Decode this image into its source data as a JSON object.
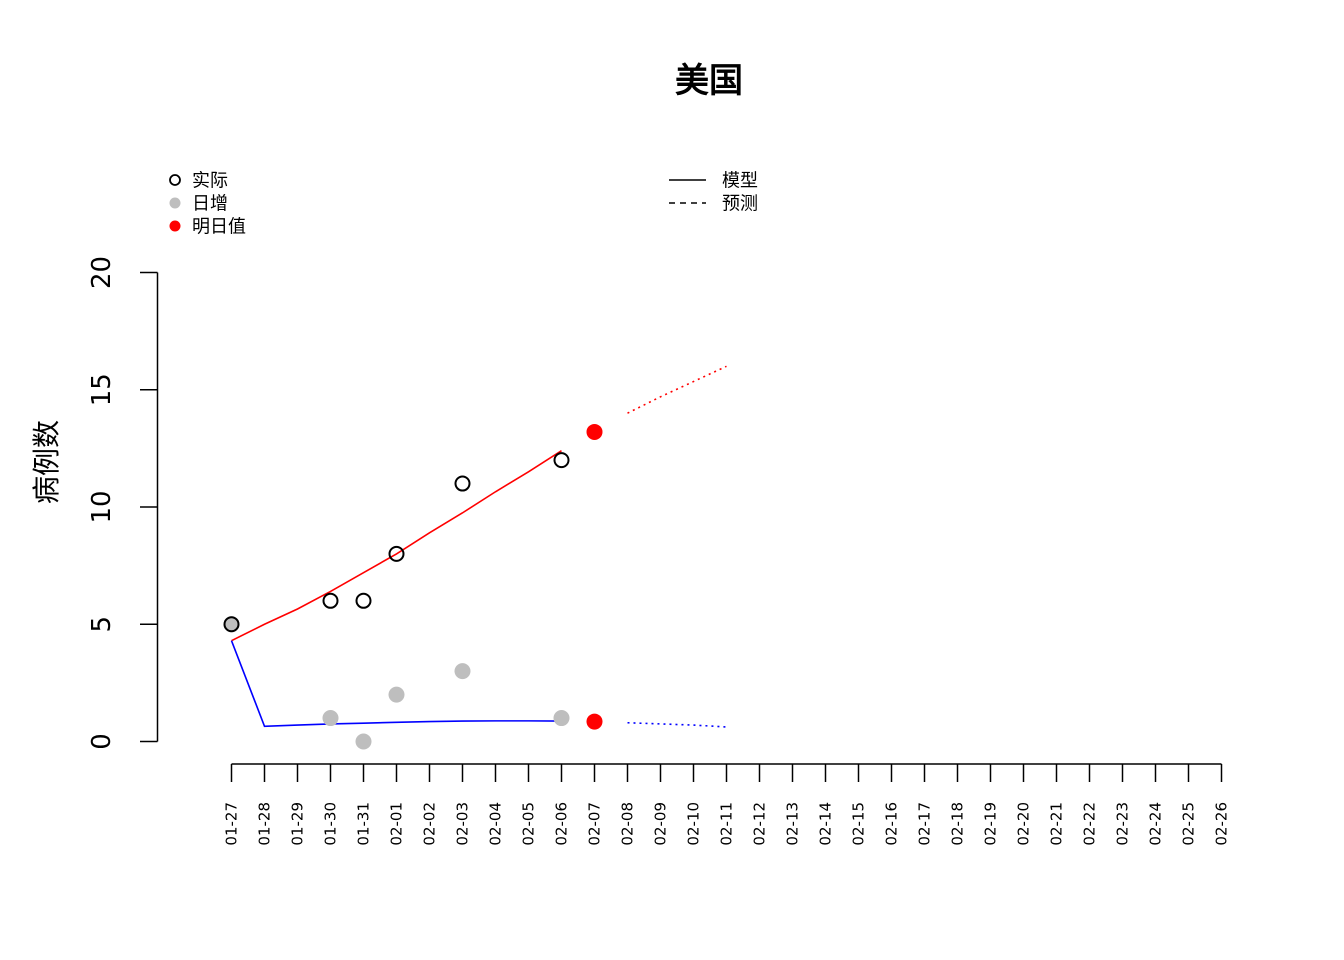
{
  "chart_data": {
    "type": "scatter",
    "title": "美国",
    "xlabel": "",
    "ylabel": "病例数",
    "ylim": [
      0,
      20
    ],
    "yticks": [
      0,
      5,
      10,
      15,
      20
    ],
    "x_categories": [
      "01-27",
      "01-28",
      "01-29",
      "01-30",
      "01-31",
      "02-01",
      "02-02",
      "02-03",
      "02-04",
      "02-05",
      "02-06",
      "02-07",
      "02-08",
      "02-09",
      "02-10",
      "02-11",
      "02-12",
      "02-13",
      "02-14",
      "02-15",
      "02-16",
      "02-17",
      "02-18",
      "02-19",
      "02-20",
      "02-21",
      "02-22",
      "02-23",
      "02-24",
      "02-25",
      "02-26"
    ],
    "legend": {
      "points": [
        {
          "label": "实际",
          "style": "open-circle",
          "color": "#000000"
        },
        {
          "label": "日增",
          "style": "filled-circle",
          "color": "#bebebe"
        },
        {
          "label": "明日值",
          "style": "filled-circle",
          "color": "#ff0000"
        }
      ],
      "lines": [
        {
          "label": "模型",
          "style": "solid"
        },
        {
          "label": "预测",
          "style": "dashed"
        }
      ]
    },
    "series": [
      {
        "kind": "actual",
        "color": "#000000",
        "points": [
          [
            "01-27",
            5
          ],
          [
            "01-30",
            6
          ],
          [
            "01-31",
            6
          ],
          [
            "02-01",
            8
          ],
          [
            "02-03",
            11
          ],
          [
            "02-06",
            12
          ]
        ]
      },
      {
        "kind": "daily",
        "color": "#bebebe",
        "points": [
          [
            "01-27",
            5
          ],
          [
            "01-30",
            1
          ],
          [
            "01-31",
            0
          ],
          [
            "02-01",
            2
          ],
          [
            "02-03",
            3
          ],
          [
            "02-06",
            1
          ]
        ]
      },
      {
        "kind": "tomorrow",
        "color": "#ff0000",
        "points": [
          [
            "02-07",
            13.2
          ],
          [
            "02-07",
            0.85
          ]
        ]
      },
      {
        "kind": "model-cumulative",
        "color": "#ff0000",
        "points": [
          [
            "01-27",
            4.3
          ],
          [
            "01-28",
            5.0
          ],
          [
            "01-29",
            5.65
          ],
          [
            "01-30",
            6.4
          ],
          [
            "01-31",
            7.2
          ],
          [
            "02-01",
            8.0
          ],
          [
            "02-02",
            8.9
          ],
          [
            "02-03",
            9.75
          ],
          [
            "02-04",
            10.65
          ],
          [
            "02-05",
            11.5
          ],
          [
            "02-06",
            12.4
          ]
        ]
      },
      {
        "kind": "model-daily",
        "color": "#0000ff",
        "points": [
          [
            "01-27",
            4.3
          ],
          [
            "01-28",
            0.65
          ],
          [
            "01-29",
            0.7
          ],
          [
            "01-30",
            0.75
          ],
          [
            "01-31",
            0.78
          ],
          [
            "02-01",
            0.82
          ],
          [
            "02-02",
            0.85
          ],
          [
            "02-03",
            0.87
          ],
          [
            "02-04",
            0.88
          ],
          [
            "02-05",
            0.88
          ],
          [
            "02-06",
            0.87
          ]
        ]
      },
      {
        "kind": "forecast-cumulative",
        "color": "#ff0000",
        "points": [
          [
            "02-08",
            14.0
          ],
          [
            "02-09",
            14.7
          ],
          [
            "02-10",
            15.35
          ],
          [
            "02-11",
            16.0
          ]
        ]
      },
      {
        "kind": "forecast-daily",
        "color": "#0000ff",
        "points": [
          [
            "02-08",
            0.8
          ],
          [
            "02-09",
            0.75
          ],
          [
            "02-10",
            0.7
          ],
          [
            "02-11",
            0.62
          ]
        ]
      }
    ]
  }
}
